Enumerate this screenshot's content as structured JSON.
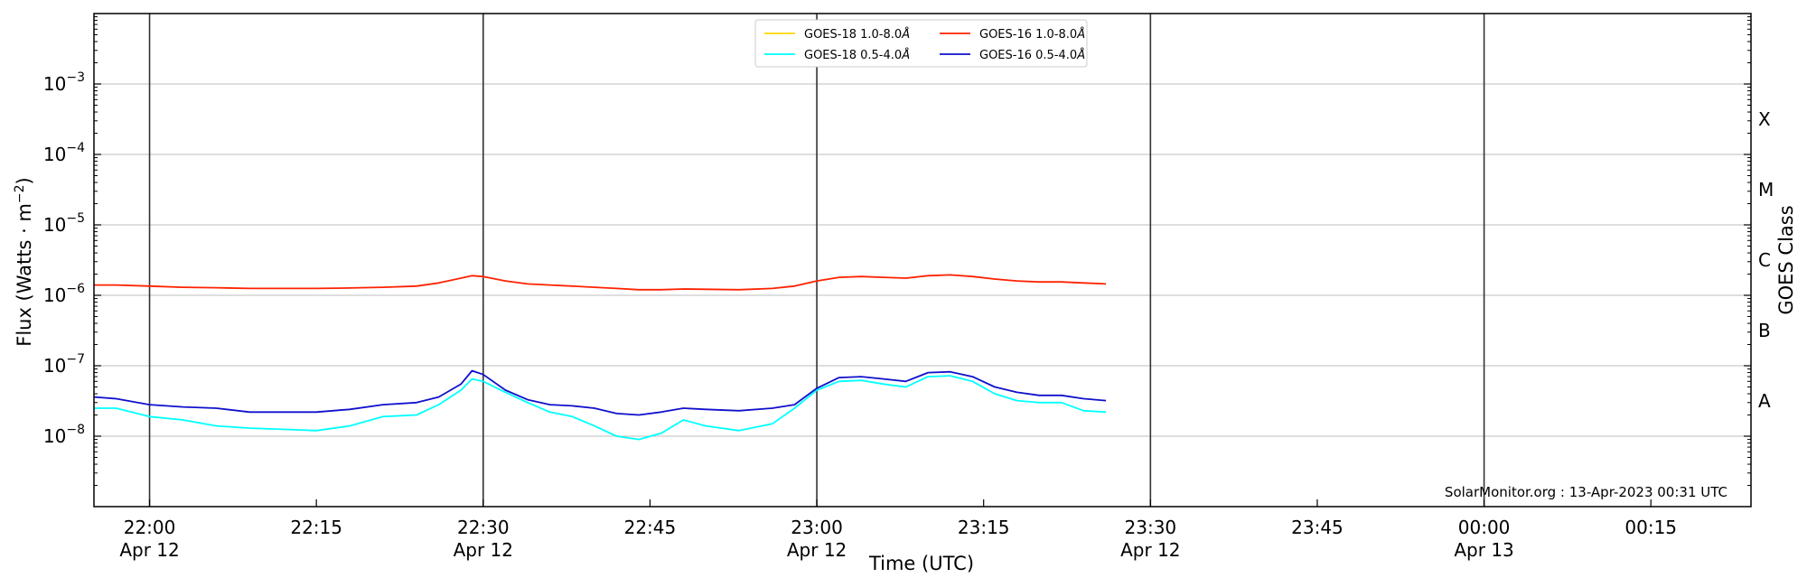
{
  "chart_data": {
    "type": "line",
    "title": "",
    "xlabel": "Time (UTC)",
    "ylabel": "Flux (Watts · m⁻²)",
    "y2label": "GOES Class",
    "y_scale": "log",
    "ylim": [
      1e-09,
      0.01
    ],
    "xlim": [
      "2023-04-12T21:55",
      "2023-04-13T00:24"
    ],
    "grid": "horizontal at decades",
    "legend_position": "top-center",
    "y_ticks": [
      {
        "value": 1e-08,
        "mantissa": "10",
        "exp": "−8"
      },
      {
        "value": 1e-07,
        "mantissa": "10",
        "exp": "−7"
      },
      {
        "value": 1e-06,
        "mantissa": "10",
        "exp": "−6"
      },
      {
        "value": 1e-05,
        "mantissa": "10",
        "exp": "−5"
      },
      {
        "value": 0.0001,
        "mantissa": "10",
        "exp": "−4"
      },
      {
        "value": 0.001,
        "mantissa": "10",
        "exp": "−3"
      }
    ],
    "x_ticks": [
      {
        "time": "2023-04-12T22:00",
        "label": "22:00",
        "sublabel": "Apr 12"
      },
      {
        "time": "2023-04-12T22:15",
        "label": "22:15",
        "sublabel": ""
      },
      {
        "time": "2023-04-12T22:30",
        "label": "22:30",
        "sublabel": "Apr 12"
      },
      {
        "time": "2023-04-12T22:45",
        "label": "22:45",
        "sublabel": ""
      },
      {
        "time": "2023-04-12T23:00",
        "label": "23:00",
        "sublabel": "Apr 12"
      },
      {
        "time": "2023-04-12T23:15",
        "label": "23:15",
        "sublabel": ""
      },
      {
        "time": "2023-04-12T23:30",
        "label": "23:30",
        "sublabel": "Apr 12"
      },
      {
        "time": "2023-04-12T23:45",
        "label": "23:45",
        "sublabel": ""
      },
      {
        "time": "2023-04-13T00:00",
        "label": "00:00",
        "sublabel": "Apr 13"
      },
      {
        "time": "2023-04-13T00:15",
        "label": "00:15",
        "sublabel": ""
      }
    ],
    "vlines": [
      "2023-04-12T22:00",
      "2023-04-12T22:30",
      "2023-04-12T23:00",
      "2023-04-12T23:30",
      "2023-04-13T00:00"
    ],
    "goes_classes": [
      {
        "label": "A",
        "value": 3.16e-08
      },
      {
        "label": "B",
        "value": 3.16e-07
      },
      {
        "label": "C",
        "value": 3.16e-06
      },
      {
        "label": "M",
        "value": 3.16e-05
      },
      {
        "label": "X",
        "value": 0.000316
      }
    ],
    "x_times": [
      "2023-04-12T21:55",
      "2023-04-12T21:57",
      "2023-04-12T22:00",
      "2023-04-12T22:03",
      "2023-04-12T22:06",
      "2023-04-12T22:09",
      "2023-04-12T22:12",
      "2023-04-12T22:15",
      "2023-04-12T22:18",
      "2023-04-12T22:21",
      "2023-04-12T22:24",
      "2023-04-12T22:26",
      "2023-04-12T22:28",
      "2023-04-12T22:29",
      "2023-04-12T22:30",
      "2023-04-12T22:32",
      "2023-04-12T22:34",
      "2023-04-12T22:36",
      "2023-04-12T22:38",
      "2023-04-12T22:40",
      "2023-04-12T22:42",
      "2023-04-12T22:44",
      "2023-04-12T22:46",
      "2023-04-12T22:48",
      "2023-04-12T22:50",
      "2023-04-12T22:53",
      "2023-04-12T22:56",
      "2023-04-12T22:58",
      "2023-04-12T23:00",
      "2023-04-12T23:02",
      "2023-04-12T23:04",
      "2023-04-12T23:06",
      "2023-04-12T23:08",
      "2023-04-12T23:10",
      "2023-04-12T23:12",
      "2023-04-12T23:14",
      "2023-04-12T23:16",
      "2023-04-12T23:18",
      "2023-04-12T23:20",
      "2023-04-12T23:22",
      "2023-04-12T23:24",
      "2023-04-12T23:26"
    ],
    "series": [
      {
        "name": "GOES-18 1.0-8.0Å",
        "label_main": "GOES-18 1.0-8.0",
        "color": "#ffd700",
        "values": []
      },
      {
        "name": "GOES-18 0.5-4.0Å",
        "label_main": "GOES-18 0.5-4.0",
        "color": "#00ffff",
        "values": [
          2.5e-08,
          2.5e-08,
          1.9e-08,
          1.7e-08,
          1.4e-08,
          1.3e-08,
          1.25e-08,
          1.2e-08,
          1.4e-08,
          1.9e-08,
          2e-08,
          2.8e-08,
          4.5e-08,
          6.5e-08,
          6e-08,
          4.2e-08,
          3e-08,
          2.2e-08,
          1.9e-08,
          1.4e-08,
          1e-08,
          9e-09,
          1.1e-08,
          1.7e-08,
          1.4e-08,
          1.2e-08,
          1.5e-08,
          2.5e-08,
          4.5e-08,
          6e-08,
          6.2e-08,
          5.5e-08,
          5e-08,
          7e-08,
          7.2e-08,
          6e-08,
          4e-08,
          3.2e-08,
          3e-08,
          3e-08,
          2.3e-08,
          2.2e-08
        ]
      },
      {
        "name": "GOES-16 1.0-8.0Å",
        "label_main": "GOES-16 1.0-8.0",
        "color": "#ff2200",
        "values": [
          1.4e-06,
          1.4e-06,
          1.35e-06,
          1.3e-06,
          1.28e-06,
          1.25e-06,
          1.25e-06,
          1.25e-06,
          1.27e-06,
          1.3e-06,
          1.35e-06,
          1.5e-06,
          1.75e-06,
          1.9e-06,
          1.85e-06,
          1.6e-06,
          1.45e-06,
          1.4e-06,
          1.35e-06,
          1.3e-06,
          1.25e-06,
          1.2e-06,
          1.2e-06,
          1.23e-06,
          1.22e-06,
          1.2e-06,
          1.25e-06,
          1.35e-06,
          1.6e-06,
          1.8e-06,
          1.85e-06,
          1.8e-06,
          1.75e-06,
          1.9e-06,
          1.95e-06,
          1.85e-06,
          1.7e-06,
          1.6e-06,
          1.55e-06,
          1.55e-06,
          1.5e-06,
          1.45e-06
        ]
      },
      {
        "name": "GOES-16 0.5-4.0Å",
        "label_main": "GOES-16 0.5-4.0",
        "color": "#1010cc",
        "values": [
          3.6e-08,
          3.4e-08,
          2.8e-08,
          2.6e-08,
          2.5e-08,
          2.2e-08,
          2.2e-08,
          2.2e-08,
          2.4e-08,
          2.8e-08,
          3e-08,
          3.6e-08,
          5.5e-08,
          8.5e-08,
          7.5e-08,
          4.5e-08,
          3.3e-08,
          2.8e-08,
          2.7e-08,
          2.5e-08,
          2.1e-08,
          2e-08,
          2.2e-08,
          2.5e-08,
          2.4e-08,
          2.3e-08,
          2.5e-08,
          2.8e-08,
          4.8e-08,
          6.8e-08,
          7e-08,
          6.5e-08,
          6e-08,
          8e-08,
          8.2e-08,
          7e-08,
          5e-08,
          4.2e-08,
          3.8e-08,
          3.8e-08,
          3.4e-08,
          3.2e-08
        ]
      }
    ],
    "annotation": "SolarMonitor.org : 13-Apr-2023 00:31 UTC"
  }
}
